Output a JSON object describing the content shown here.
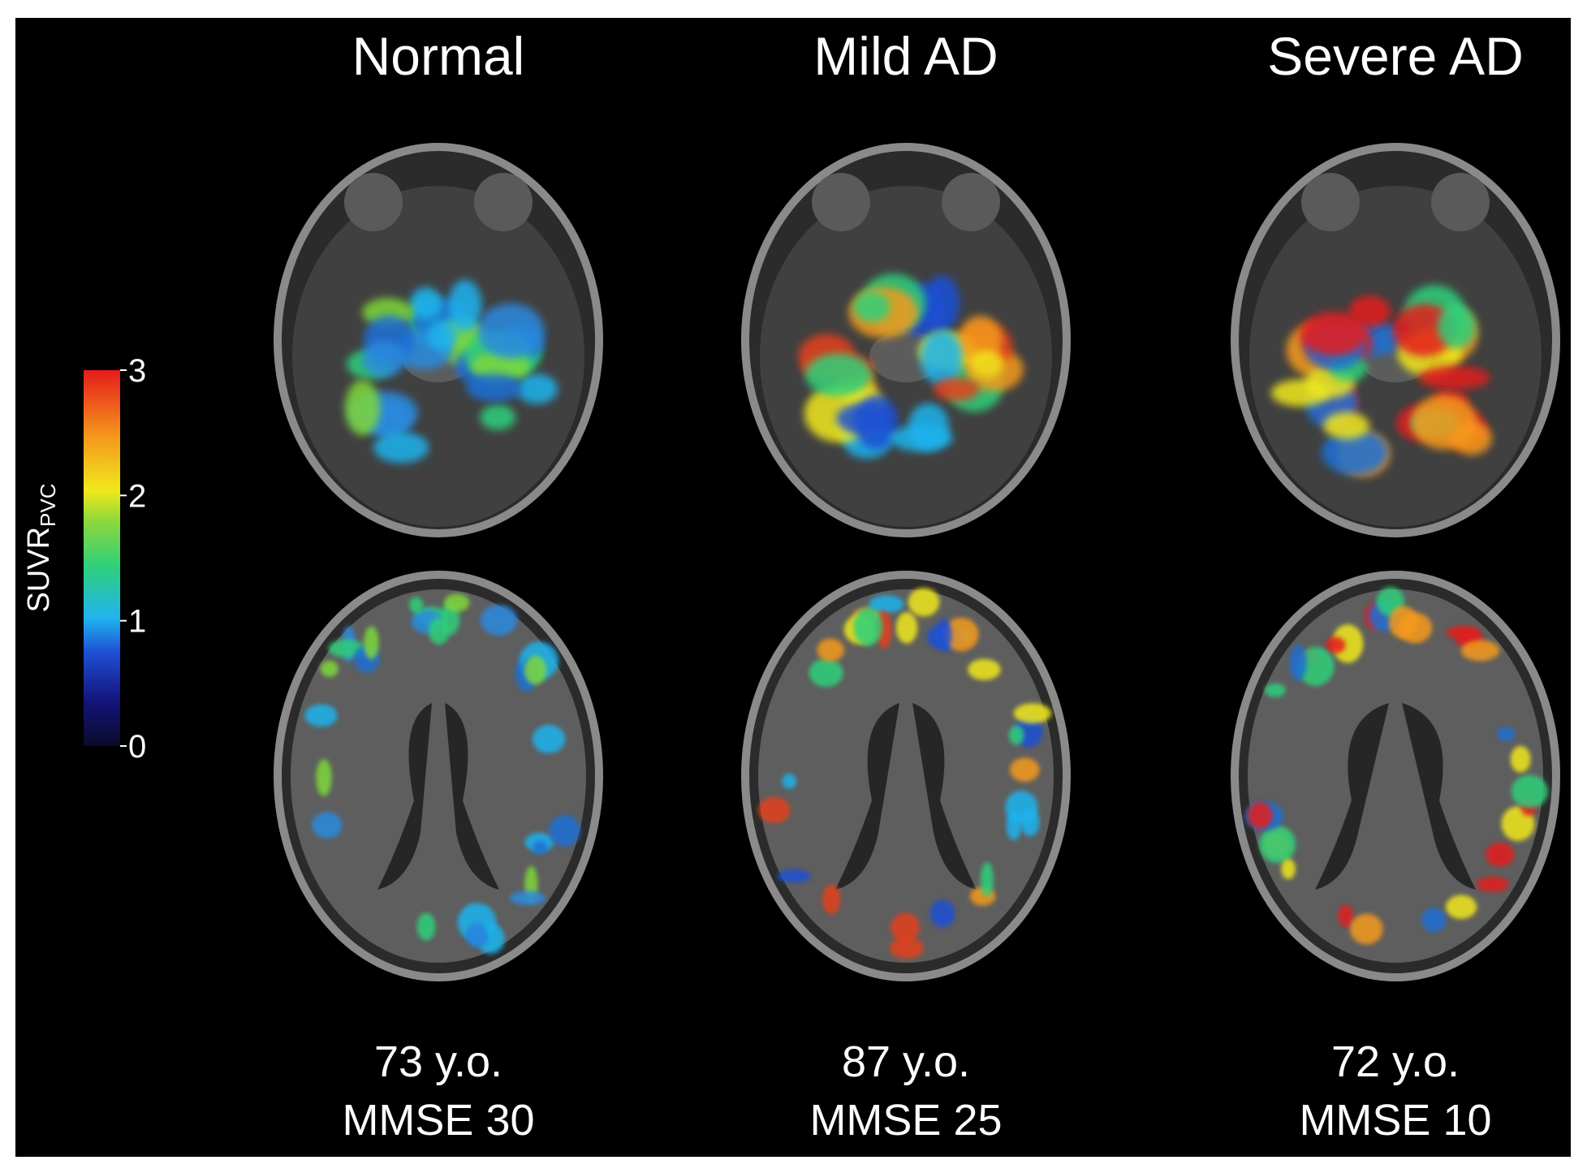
{
  "columns": [
    {
      "title": "Normal",
      "age": "73 y.o.",
      "mmse": "MMSE 30"
    },
    {
      "title": "Mild AD",
      "age": "87 y.o.",
      "mmse": "MMSE 25"
    },
    {
      "title": "Severe AD",
      "age": "72 y.o.",
      "mmse": "MMSE 10"
    }
  ],
  "colorbar": {
    "label": "SUVR",
    "label_sub": "PVC",
    "lim": [
      0,
      3
    ],
    "ticks": [
      0,
      1,
      2,
      3
    ]
  }
}
